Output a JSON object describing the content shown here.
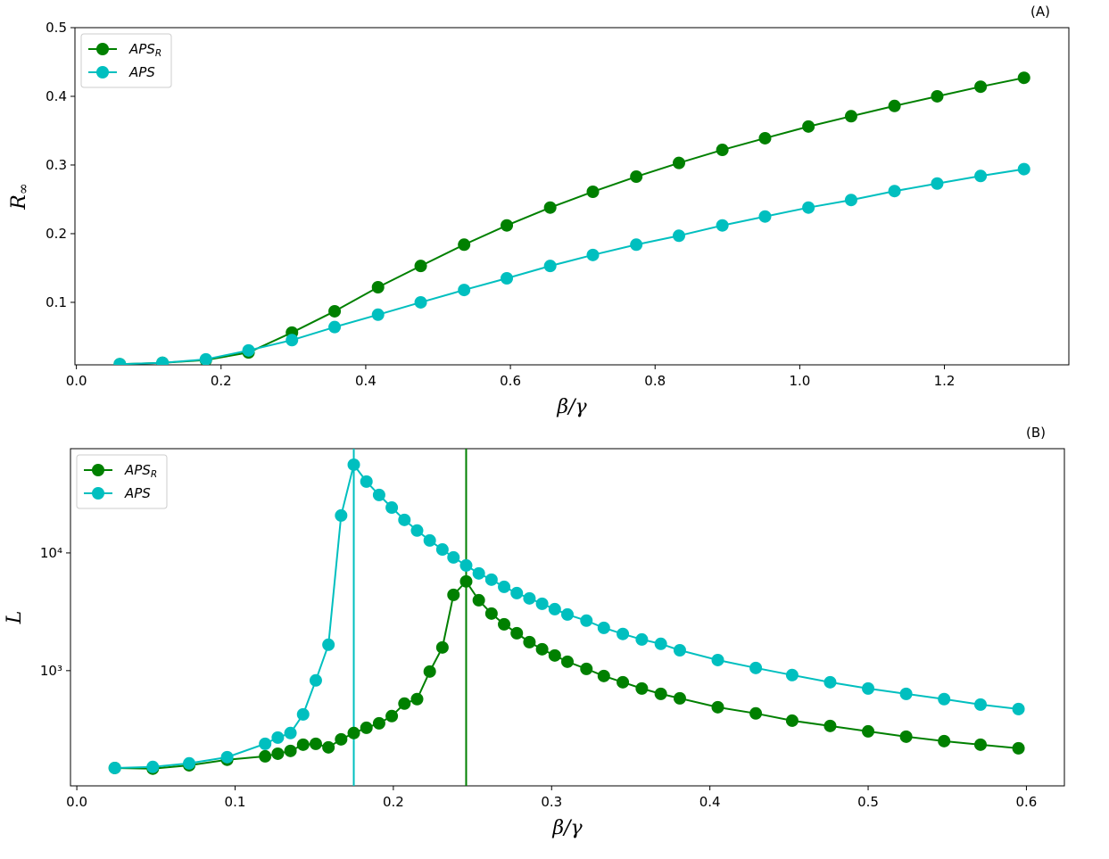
{
  "chart_data": [
    {
      "type": "line",
      "panel_label": "(A)",
      "x_label": "β/γ",
      "y_label": "R_∞",
      "x": [
        0.06,
        0.119,
        0.179,
        0.238,
        0.298,
        0.357,
        0.417,
        0.476,
        0.536,
        0.595,
        0.655,
        0.714,
        0.774,
        0.833,
        0.893,
        0.952,
        1.012,
        1.071,
        1.131,
        1.19,
        1.25,
        1.31
      ],
      "series": [
        {
          "name": "APS_R",
          "color": "#008000",
          "values": [
            0.01,
            0.012,
            0.016,
            0.027,
            0.056,
            0.087,
            0.122,
            0.153,
            0.184,
            0.212,
            0.238,
            0.261,
            0.283,
            0.303,
            0.322,
            0.339,
            0.356,
            0.371,
            0.386,
            0.4,
            0.414,
            0.427
          ]
        },
        {
          "name": "APS",
          "color": "#00bfbf",
          "values": [
            0.01,
            0.012,
            0.017,
            0.03,
            0.045,
            0.064,
            0.082,
            0.1,
            0.118,
            0.135,
            0.153,
            0.169,
            0.184,
            0.197,
            0.212,
            0.225,
            0.238,
            0.249,
            0.262,
            0.273,
            0.284,
            0.294
          ]
        }
      ],
      "xlim": [
        -0.002,
        1.372
      ],
      "ylim": [
        0.009,
        0.5
      ],
      "xticks": [
        {
          "value": 0,
          "label": "0.0"
        },
        0.2,
        0.4,
        0.6,
        0.8,
        {
          "value": 1,
          "label": "1.0"
        },
        1.2
      ],
      "yticks": [
        0.1,
        0.2,
        0.3,
        0.4,
        0.5
      ],
      "log_y": false,
      "grid": false,
      "legend": "upper left"
    },
    {
      "type": "line",
      "panel_label": "(B)",
      "x_label": "β/γ",
      "y_label": "L",
      "x": [
        0.024,
        0.048,
        0.071,
        0.095,
        0.119,
        0.127,
        0.135,
        0.143,
        0.151,
        0.159,
        0.167,
        0.175,
        0.183,
        0.191,
        0.199,
        0.207,
        0.215,
        0.223,
        0.231,
        0.238,
        0.246,
        0.254,
        0.262,
        0.27,
        0.278,
        0.286,
        0.294,
        0.302,
        0.31,
        0.322,
        0.333,
        0.345,
        0.357,
        0.369,
        0.381,
        0.405,
        0.429,
        0.452,
        0.476,
        0.5,
        0.524,
        0.548,
        0.571,
        0.595
      ],
      "series": [
        {
          "name": "APS_R",
          "color": "#008000",
          "values": [
            149,
            147,
            157,
            175,
            187,
            197,
            208,
            235,
            239,
            223,
            261,
            295,
            327,
            357,
            411,
            525,
            573,
            983,
            1574,
            4406,
            5727,
            3966,
            3055,
            2477,
            2080,
            1747,
            1520,
            1345,
            1191,
            1035,
            901,
            797,
            705,
            635,
            582,
            489,
            433,
            376,
            339,
            305,
            275,
            252,
            235,
            219
          ]
        },
        {
          "name": "APS",
          "color": "#00bfbf",
          "values": [
            149,
            152,
            163,
            184,
            239,
            270,
            295,
            425,
            826,
            1660,
            20800,
            56200,
            40400,
            31100,
            24300,
            19100,
            15500,
            12760,
            10700,
            9165,
            7830,
            6700,
            5930,
            5150,
            4560,
            4110,
            3700,
            3330,
            3000,
            2660,
            2310,
            2050,
            1840,
            1690,
            1490,
            1230,
            1054,
            917,
            797,
            705,
            635,
            573,
            515,
            472
          ]
        }
      ],
      "vlines": [
        {
          "x": 0.175,
          "color": "#00bfbf"
        },
        {
          "x": 0.246,
          "color": "#008000"
        }
      ],
      "xlim": [
        -0.004,
        0.624
      ],
      "ylim": [
        105,
        76900
      ],
      "xticks": [
        {
          "value": 0,
          "label": "0.0"
        },
        0.1,
        0.2,
        0.3,
        0.4,
        0.5,
        0.6
      ],
      "yticks": [
        {
          "value": 1000,
          "label": "10³"
        },
        {
          "value": 10000,
          "label": "10⁴"
        }
      ],
      "log_y": true,
      "grid": false,
      "legend": "upper left"
    }
  ]
}
